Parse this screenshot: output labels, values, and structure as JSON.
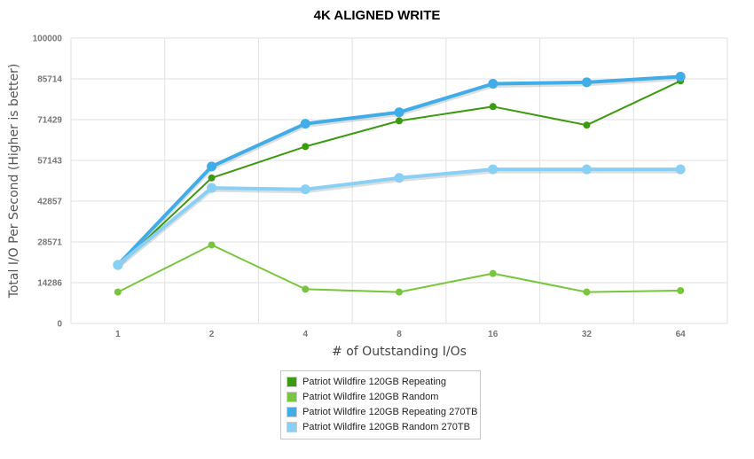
{
  "chart_data": {
    "type": "line",
    "title": "4K ALIGNED WRITE",
    "xlabel": "# of Outstanding I/Os",
    "ylabel": "Total I/O Per Second (Higher is better)",
    "categories": [
      "1",
      "2",
      "4",
      "8",
      "16",
      "32",
      "64"
    ],
    "ylim": [
      0,
      100000
    ],
    "yticks": [
      "0",
      "14286",
      "28571",
      "42857",
      "57143",
      "71429",
      "85714",
      "100000"
    ],
    "grid": true,
    "legend_position": "bottom",
    "series": [
      {
        "name": "Patriot Wildfire 120GB Repeating",
        "color": "#3b9a0f",
        "values": [
          20000,
          51000,
          62000,
          71000,
          76000,
          69500,
          85000
        ]
      },
      {
        "name": "Patriot Wildfire 120GB Random",
        "color": "#77c63b",
        "values": [
          11000,
          27500,
          12000,
          11000,
          17500,
          11000,
          11500
        ]
      },
      {
        "name": "Patriot Wildfire 120GB Repeating 270TB",
        "color": "#41ade8",
        "values": [
          20500,
          55000,
          70000,
          74000,
          84000,
          84500,
          86500
        ]
      },
      {
        "name": "Patriot Wildfire 120GB Random 270TB",
        "color": "#89d0f4",
        "values": [
          20500,
          47500,
          47000,
          51000,
          54000,
          54000,
          54000
        ]
      }
    ]
  }
}
